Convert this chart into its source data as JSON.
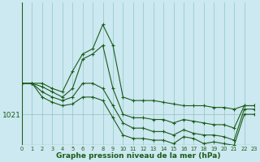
{
  "title": "Graphe pression niveau de la mer (hPa)",
  "bg_color": "#cce8f0",
  "line_color": "#1a5c1a",
  "grid_color": "#99cccc",
  "xlim": [
    0,
    23
  ],
  "ylim_min": 1019.2,
  "ylim_max": 1027.5,
  "ytick_val": 1021,
  "series": [
    [
      1022.8,
      1022.8,
      1022.8,
      1022.5,
      1022.3,
      1023.5,
      1024.5,
      1024.8,
      1026.2,
      1025.0,
      1022.0,
      1021.8,
      1021.8,
      1021.8,
      1021.7,
      1021.6,
      1021.5,
      1021.5,
      1021.5,
      1021.4,
      1021.4,
      1021.3,
      1021.5,
      1021.5
    ],
    [
      1022.8,
      1022.8,
      1022.6,
      1022.3,
      1022.0,
      1022.5,
      1024.2,
      1024.5,
      1025.0,
      1022.5,
      1021.0,
      1020.8,
      1020.8,
      1020.7,
      1020.7,
      1020.5,
      1020.7,
      1020.6,
      1020.5,
      1020.4,
      1020.4,
      1020.2,
      1021.5,
      1021.5
    ],
    [
      1022.8,
      1022.8,
      1022.3,
      1022.0,
      1021.8,
      1022.0,
      1022.8,
      1022.8,
      1022.5,
      1021.5,
      1020.5,
      1020.2,
      1020.2,
      1020.0,
      1020.0,
      1019.8,
      1020.1,
      1019.9,
      1019.8,
      1019.8,
      1019.7,
      1019.5,
      1021.3,
      1021.3
    ],
    [
      1022.8,
      1022.8,
      1022.0,
      1021.7,
      1021.5,
      1021.6,
      1022.0,
      1022.0,
      1021.8,
      1020.8,
      1019.8,
      1019.6,
      1019.6,
      1019.5,
      1019.5,
      1019.3,
      1019.7,
      1019.6,
      1019.3,
      1019.4,
      1019.3,
      1019.2,
      1021.0,
      1021.0
    ]
  ]
}
